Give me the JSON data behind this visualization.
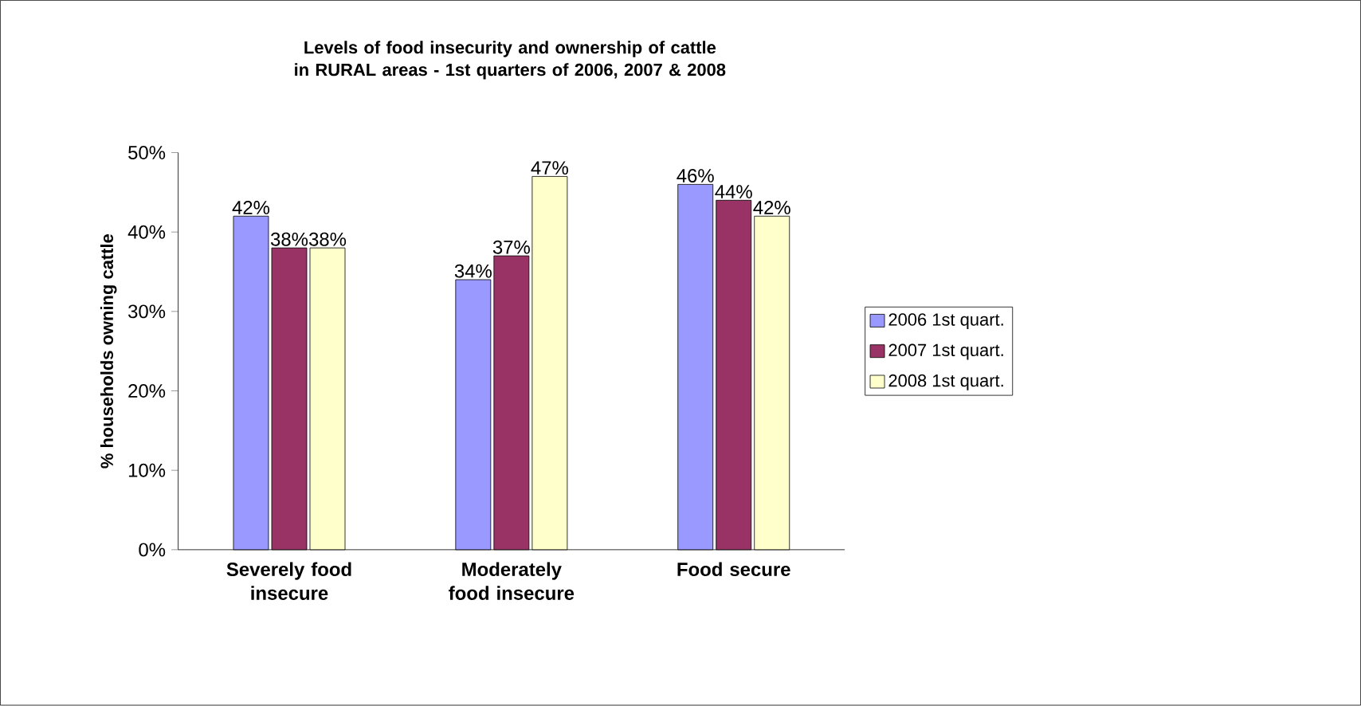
{
  "chart_data": {
    "type": "bar",
    "title": "Levels of food insecurity and ownership of cattle in RURAL areas - 1st quarters of 2006, 2007 & 2008",
    "ylabel": "% households owning cattle",
    "categories": [
      "Severely food insecure",
      "Moderately food insecure",
      "Food secure"
    ],
    "series": [
      {
        "name": "2006 1st quart.",
        "color": "#9999ff",
        "values": [
          42,
          34,
          46
        ],
        "value_labels": [
          "42%",
          "34%",
          "46%"
        ]
      },
      {
        "name": "2007 1st quart.",
        "color": "#993366",
        "values": [
          38,
          37,
          44
        ],
        "value_labels": [
          "38%",
          "37%",
          "44%"
        ]
      },
      {
        "name": "2008 1st quart.",
        "color": "#ffffcc",
        "values": [
          38,
          47,
          42
        ],
        "value_labels": [
          "38%",
          "47%",
          "42%"
        ]
      }
    ],
    "ylim": [
      0,
      50
    ],
    "yticks": [
      {
        "value": 0,
        "label": "0%"
      },
      {
        "value": 10,
        "label": "10%"
      },
      {
        "value": 20,
        "label": "20%"
      },
      {
        "value": 30,
        "label": "30%"
      },
      {
        "value": 40,
        "label": "40%"
      },
      {
        "value": 50,
        "label": "50%"
      }
    ],
    "grid": false,
    "legend": "right"
  }
}
